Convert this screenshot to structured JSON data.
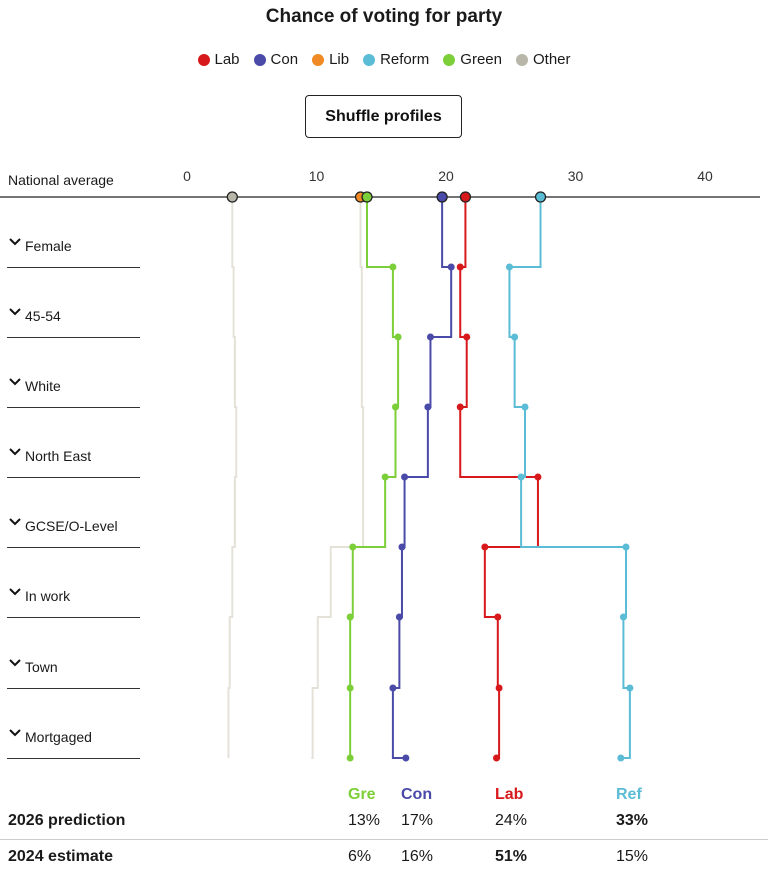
{
  "title": "Chance of voting for party",
  "legend": [
    {
      "label": "Lab",
      "color": "#d7191c"
    },
    {
      "label": "Con",
      "color": "#4a4aa8"
    },
    {
      "label": "Lib",
      "color": "#f08a24"
    },
    {
      "label": "Reform",
      "color": "#5bbcd6"
    },
    {
      "label": "Green",
      "color": "#7ccf38"
    },
    {
      "label": "Other",
      "color": "#b8b6a8"
    }
  ],
  "shuffle_label": "Shuffle profiles",
  "national_average_label": "National average",
  "profiles": [
    "Female",
    "45-54",
    "White",
    "North East",
    "GCSE/O-Level",
    "In work",
    "Town",
    "Mortgaged"
  ],
  "chart_data": {
    "type": "line",
    "x_ticks": [
      0,
      10,
      20,
      30,
      40
    ],
    "xlim": [
      -14.3,
      44.5
    ],
    "national_average": {
      "Lab": 21.5,
      "Con": 19.7,
      "Lib": 13.4,
      "Reform": 27.3,
      "Green": 13.9,
      "Other": 3.5
    },
    "series": [
      {
        "name": "Lab",
        "color": "#d7191c",
        "values": [
          21.1,
          21.6,
          21.1,
          27.1,
          23.0,
          24.0,
          24.1,
          23.9
        ]
      },
      {
        "name": "Con",
        "color": "#4a4aa8",
        "values": [
          20.4,
          18.8,
          18.6,
          16.8,
          16.6,
          16.4,
          15.9,
          16.9
        ]
      },
      {
        "name": "Reform",
        "color": "#5bbcd6",
        "values": [
          24.9,
          25.3,
          26.1,
          25.8,
          33.9,
          33.7,
          34.2,
          33.5
        ]
      },
      {
        "name": "Green",
        "color": "#7ccf38",
        "values": [
          15.9,
          16.3,
          16.1,
          15.3,
          12.8,
          12.6,
          12.6,
          12.6
        ]
      }
    ],
    "trails": [
      {
        "name": "Lib",
        "values": [
          13.5,
          13.5,
          13.6,
          13.6,
          11.1,
          10.1,
          9.7,
          9.6
        ]
      },
      {
        "name": "Other",
        "values": [
          3.6,
          3.7,
          3.8,
          3.7,
          3.5,
          3.3,
          3.2,
          3.2
        ]
      }
    ]
  },
  "summary": {
    "headers": [
      {
        "label": "Gre",
        "color": "#7ccf38"
      },
      {
        "label": "Con",
        "color": "#4a4aa8"
      },
      {
        "label": "Lab",
        "color": "#d7191c"
      },
      {
        "label": "Ref",
        "color": "#5bbcd6"
      }
    ],
    "rows": [
      {
        "label": "2026 prediction",
        "values": [
          "13%",
          "17%",
          "24%",
          "33%"
        ],
        "bold_index": 3
      },
      {
        "label": "2024 estimate",
        "values": [
          "6%",
          "16%",
          "51%",
          "15%"
        ],
        "bold_index": 2
      }
    ]
  }
}
